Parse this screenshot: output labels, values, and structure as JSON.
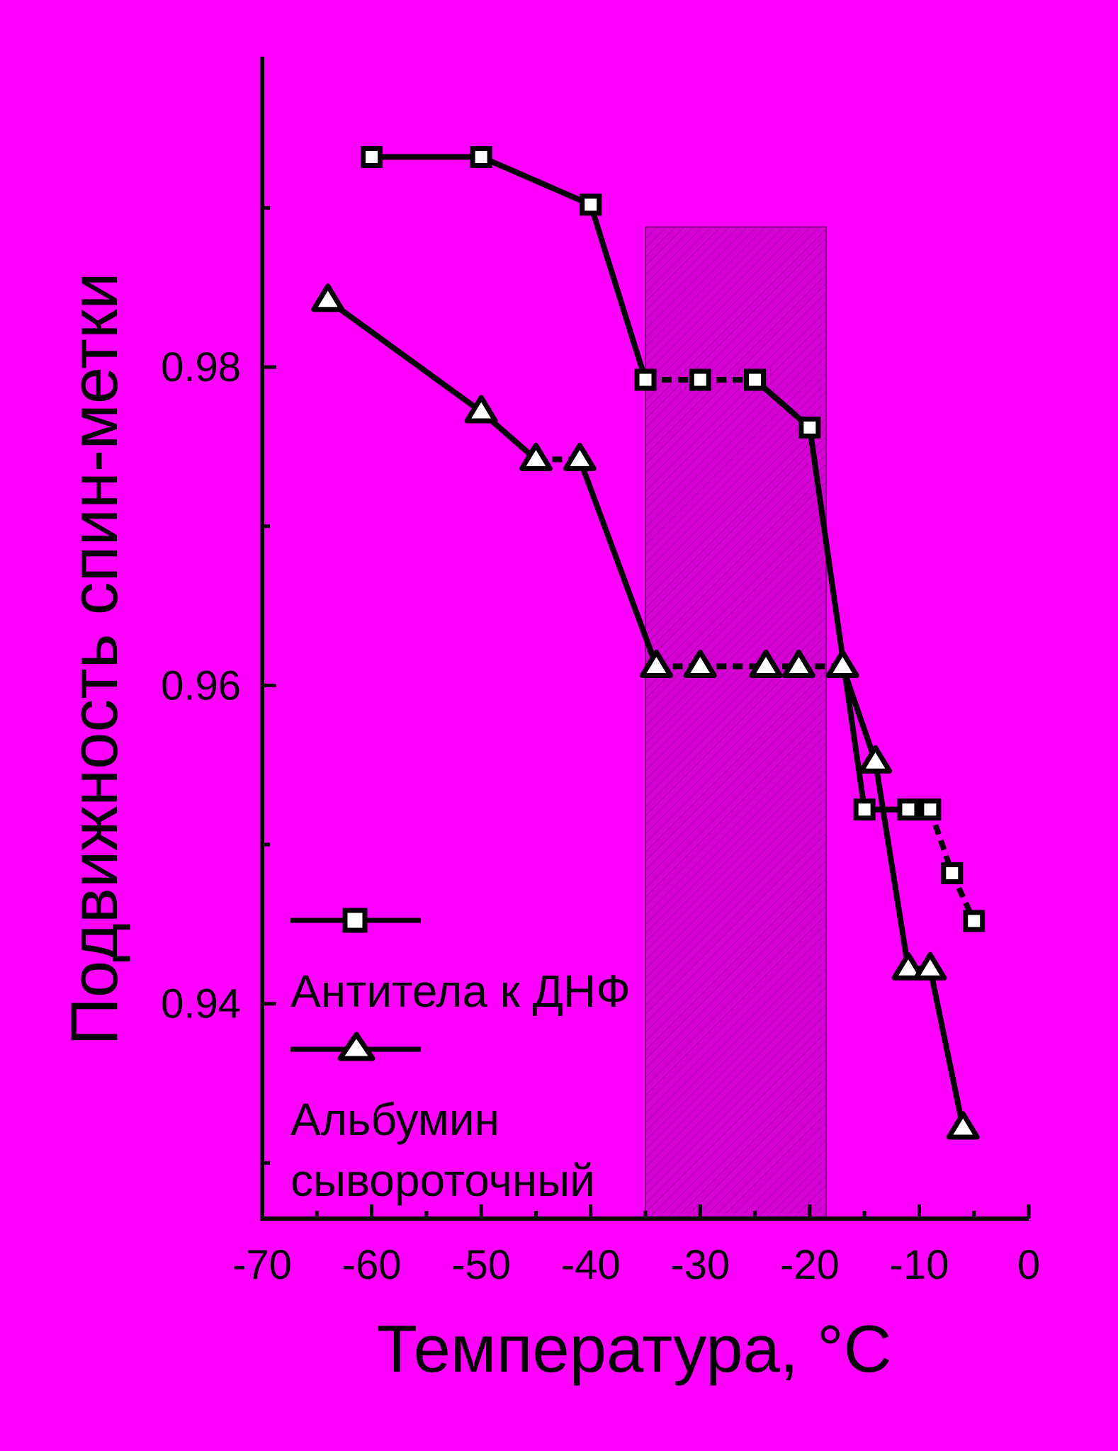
{
  "chart_data": {
    "type": "line",
    "xlabel": "Температура, °C",
    "ylabel": "Подвижность спин-метки",
    "xlim": [
      -70,
      0
    ],
    "ylim": [
      0.9265,
      0.9995
    ],
    "x_ticks": [
      -70,
      -60,
      -50,
      -40,
      -30,
      -20,
      -10,
      0
    ],
    "x_tick_labels": [
      "-70",
      "-60",
      "-50",
      "-40",
      "-30",
      "-20",
      "-10",
      "0"
    ],
    "y_ticks": [
      0.94,
      0.96,
      0.98
    ],
    "y_tick_labels": [
      "0.94",
      "0.96",
      "0.98"
    ],
    "grid": false,
    "legend_position": "bottom-left",
    "shaded_region": {
      "x": [
        -35,
        -18.5
      ],
      "y": [
        0.9265,
        0.9888
      ],
      "pattern": "diagonal-hatch"
    },
    "series": [
      {
        "name": "Антитела к ДНФ",
        "marker": "square",
        "color": "#000000",
        "x": [
          -60,
          -50,
          -40,
          -35,
          -30,
          -25,
          -20,
          -15,
          -11,
          -9,
          -7,
          -5
        ],
        "y": [
          0.9932,
          0.9932,
          0.9902,
          0.9792,
          0.9792,
          0.9792,
          0.9762,
          0.9522,
          0.9522,
          0.9522,
          0.9482,
          0.9452
        ],
        "segment_styles": [
          "solid",
          "solid",
          "solid",
          "dashed",
          "dashed",
          "solid",
          "solid",
          "solid",
          "dashed",
          "dashed",
          "dashed"
        ]
      },
      {
        "name": "Альбумин сывороточный",
        "name_lines": [
          "Альбумин",
          "сывороточный"
        ],
        "marker": "triangle",
        "color": "#000000",
        "x": [
          -64,
          -50,
          -45,
          -41,
          -34,
          -30,
          -24,
          -21,
          -17,
          -14,
          -11,
          -9,
          -6
        ],
        "y": [
          0.9842,
          0.9772,
          0.9742,
          0.9742,
          0.9612,
          0.9612,
          0.9612,
          0.9612,
          0.9612,
          0.9552,
          0.9422,
          0.9422,
          0.9322
        ],
        "segment_styles": [
          "solid",
          "solid",
          "dashed",
          "solid",
          "dashed",
          "dashed",
          "dashed",
          "dashed",
          "solid",
          "solid",
          "solid",
          "solid"
        ]
      }
    ]
  },
  "colors": {
    "background": "#ff00ff",
    "ink": "#000000",
    "marker_fill": "#ffffff",
    "shade": "#d400d4"
  }
}
